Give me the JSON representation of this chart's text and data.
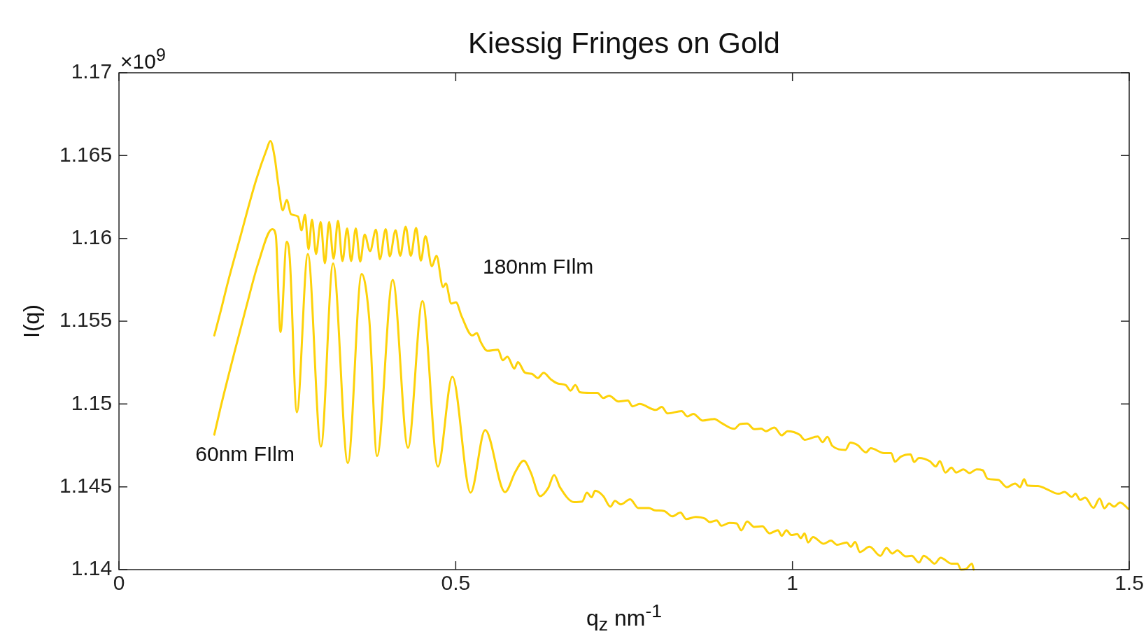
{
  "chart_data": {
    "type": "line",
    "title": "Kiessig Fringes on Gold",
    "xlabel": "q$_{z}$ nm$^{-1}$",
    "ylabel": "I(q)",
    "xlim": [
      0,
      1.5
    ],
    "xticks": [
      0,
      0.5,
      1,
      1.5
    ],
    "ylim": [
      1.14,
      1.17
    ],
    "yticks": [
      1.14,
      1.145,
      1.15,
      1.155,
      1.16,
      1.165,
      1.17
    ],
    "grid": false,
    "legend": false,
    "marker": "none",
    "line_style": "solid",
    "annotations": [
      "×10$^{9}$"
    ],
    "series": [
      {
        "name": "180nm FIlm",
        "color": "#fdd20a",
        "x": [
          0.1415,
          0.1512,
          0.1617,
          0.179,
          0.2033,
          0.219,
          0.2248,
          0.2311,
          0.2363,
          0.2432,
          0.2491,
          0.2554,
          0.2658,
          0.271,
          0.2762,
          0.2814,
          0.2866,
          0.2926,
          0.2995,
          0.3057,
          0.312,
          0.3186,
          0.3252,
          0.3318,
          0.3388,
          0.3447,
          0.3516,
          0.3582,
          0.3648,
          0.3728,
          0.3815,
          0.3874,
          0.396,
          0.402,
          0.4107,
          0.4176,
          0.4256,
          0.4333,
          0.4412,
          0.4482,
          0.4551,
          0.4645,
          0.4714,
          0.4812,
          0.4853,
          0.4933,
          0.5003,
          0.5089,
          0.5245,
          0.5315,
          0.5367,
          0.5471,
          0.5628,
          0.5697,
          0.5767,
          0.5871,
          0.5923,
          0.6027,
          0.6131,
          0.6219,
          0.6305,
          0.6409,
          0.6514,
          0.6635,
          0.6705,
          0.6775,
          0.6844,
          0.7,
          0.7104,
          0.7191,
          0.7278,
          0.7417,
          0.7555,
          0.7625,
          0.7729,
          0.7972,
          0.8059,
          0.8146,
          0.8354,
          0.8441,
          0.8528,
          0.8667,
          0.884,
          0.8944,
          0.9136,
          0.9222,
          0.9327,
          0.9431,
          0.9535,
          0.9605,
          0.9732,
          0.984,
          0.9928,
          1.0107,
          1.0179,
          1.0375,
          1.0447,
          1.0519,
          1.059,
          1.0787,
          1.0859,
          1.0966,
          1.1091,
          1.1162,
          1.1359,
          1.1466,
          1.152,
          1.1609,
          1.1753,
          1.1806,
          1.1878,
          1.2038,
          1.2128,
          1.2188,
          1.2271,
          1.236,
          1.2432,
          1.2539,
          1.2628,
          1.2735,
          1.2825,
          1.2897,
          1.3057,
          1.3182,
          1.3307,
          1.3379,
          1.344,
          1.3487,
          1.3647,
          1.3754,
          1.3951,
          1.404,
          1.4148,
          1.4201,
          1.4273,
          1.4345,
          1.447,
          1.456,
          1.4632,
          1.4703,
          1.4775,
          1.4864,
          1.4989
        ],
        "values": [
          1.15414,
          1.15564,
          1.15735,
          1.15992,
          1.16348,
          1.16534,
          1.16588,
          1.16491,
          1.16334,
          1.1617,
          1.16232,
          1.16146,
          1.16132,
          1.16049,
          1.16142,
          1.15935,
          1.16113,
          1.15906,
          1.16099,
          1.1585,
          1.16099,
          1.15878,
          1.16106,
          1.15863,
          1.1606,
          1.15863,
          1.1606,
          1.1586,
          1.16023,
          1.15923,
          1.16052,
          1.15875,
          1.16056,
          1.15892,
          1.16049,
          1.15895,
          1.1607,
          1.15895,
          1.16063,
          1.15866,
          1.16013,
          1.15832,
          1.15895,
          1.15706,
          1.15728,
          1.15607,
          1.15614,
          1.15528,
          1.15414,
          1.15428,
          1.15378,
          1.15321,
          1.15328,
          1.15264,
          1.15286,
          1.15214,
          1.15253,
          1.1519,
          1.15182,
          1.15157,
          1.15188,
          1.1515,
          1.15124,
          1.15114,
          1.15081,
          1.15114,
          1.15071,
          1.15067,
          1.15067,
          1.15036,
          1.1505,
          1.15015,
          1.15021,
          1.14986,
          1.15,
          1.14964,
          1.14982,
          1.14943,
          1.14957,
          1.14925,
          1.1494,
          1.149,
          1.1491,
          1.14886,
          1.1485,
          1.14879,
          1.14882,
          1.14848,
          1.14851,
          1.14836,
          1.14858,
          1.14811,
          1.14836,
          1.14814,
          1.14784,
          1.14804,
          1.1477,
          1.14802,
          1.14748,
          1.14723,
          1.14767,
          1.14752,
          1.14708,
          1.14733,
          1.14704,
          1.14704,
          1.14652,
          1.14682,
          1.14696,
          1.1465,
          1.14674,
          1.14655,
          1.14623,
          1.14655,
          1.14586,
          1.14616,
          1.14586,
          1.14605,
          1.14583,
          1.14605,
          1.146,
          1.14549,
          1.14542,
          1.14498,
          1.1452,
          1.14498,
          1.14546,
          1.14508,
          1.14505,
          1.1449,
          1.14458,
          1.14469,
          1.14439,
          1.14458,
          1.14421,
          1.14435,
          1.14373,
          1.14429,
          1.1437,
          1.14399,
          1.1438,
          1.14406,
          1.14366
        ]
      },
      {
        "name": "60nm FIlm",
        "color": "#fdd20a",
        "x": [
          0.1415,
          0.1512,
          0.172,
          0.1894,
          0.2067,
          0.2276,
          0.2328,
          0.2398,
          0.2491,
          0.2536,
          0.2641,
          0.2804,
          0.2999,
          0.3179,
          0.3398,
          0.3603,
          0.3717,
          0.3832,
          0.4065,
          0.4291,
          0.4506,
          0.4735,
          0.495,
          0.5221,
          0.5437,
          0.5732,
          0.5888,
          0.601,
          0.6114,
          0.6253,
          0.6375,
          0.6461,
          0.6548,
          0.6757,
          0.6878,
          0.6948,
          0.7017,
          0.7069,
          0.7191,
          0.7295,
          0.7365,
          0.7451,
          0.759,
          0.7712,
          0.7868,
          0.7955,
          0.8094,
          0.8215,
          0.8337,
          0.8424,
          0.8563,
          0.8702,
          0.8771,
          0.8876,
          0.8944,
          0.9066,
          0.917,
          0.924,
          0.9327,
          0.9431,
          0.9553,
          0.966,
          0.9785,
          0.984,
          0.991,
          0.9982,
          1.0072,
          1.0125,
          1.0179,
          1.0232,
          1.0305,
          1.0465,
          1.0572,
          1.0662,
          1.0804,
          1.0866,
          1.093,
          1.1001,
          1.1144,
          1.1306,
          1.1394,
          1.1484,
          1.1556,
          1.168,
          1.177,
          1.1878,
          1.1949,
          1.2031,
          1.211,
          1.22,
          1.236,
          1.245,
          1.2503,
          1.2575,
          1.2665,
          1.269
        ],
        "values": [
          1.14815,
          1.14985,
          1.15321,
          1.15592,
          1.15849,
          1.16056,
          1.1602,
          1.15435,
          1.1598,
          1.15878,
          1.1495,
          1.15906,
          1.14743,
          1.15849,
          1.14643,
          1.15785,
          1.15507,
          1.14686,
          1.15749,
          1.14736,
          1.15621,
          1.14622,
          1.15165,
          1.14465,
          1.14843,
          1.14468,
          1.14593,
          1.14658,
          1.14587,
          1.14444,
          1.14494,
          1.14572,
          1.14497,
          1.14408,
          1.14411,
          1.14465,
          1.14437,
          1.14476,
          1.14444,
          1.1438,
          1.14415,
          1.14394,
          1.14425,
          1.14372,
          1.14372,
          1.14358,
          1.14354,
          1.14322,
          1.14344,
          1.14305,
          1.14318,
          1.14308,
          1.14287,
          1.14297,
          1.14265,
          1.14282,
          1.14279,
          1.14237,
          1.14291,
          1.14258,
          1.14262,
          1.14219,
          1.14238,
          1.14204,
          1.14238,
          1.14209,
          1.14214,
          1.1419,
          1.14219,
          1.14164,
          1.14197,
          1.14156,
          1.14175,
          1.1415,
          1.14164,
          1.14138,
          1.14167,
          1.14106,
          1.14138,
          1.14083,
          1.14131,
          1.14097,
          1.14116,
          1.1408,
          1.14083,
          1.14043,
          1.14083,
          1.14062,
          1.14036,
          1.14072,
          1.14036,
          1.14036,
          1.14,
          1.14003,
          1.14036,
          1.14
        ]
      }
    ]
  }
}
